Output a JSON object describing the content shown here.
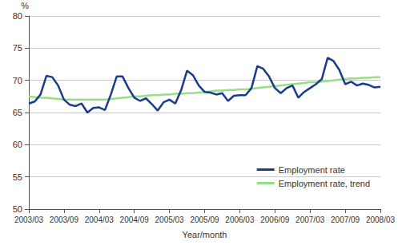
{
  "chart_data": {
    "type": "line",
    "x_label": "Year/month",
    "y_label": "%",
    "categories": [
      "2003/03",
      null,
      null,
      null,
      null,
      null,
      "2003/09",
      null,
      null,
      null,
      null,
      null,
      "2004/03",
      null,
      null,
      null,
      null,
      null,
      "2004/09",
      null,
      null,
      null,
      null,
      null,
      "2005/03",
      null,
      null,
      null,
      null,
      null,
      "2005/09",
      null,
      null,
      null,
      null,
      null,
      "2006/03",
      null,
      null,
      null,
      null,
      null,
      "2006/09",
      null,
      null,
      null,
      null,
      null,
      "2007/03",
      null,
      null,
      null,
      null,
      null,
      "2007/09",
      null,
      null,
      null,
      null,
      null,
      "2008/03"
    ],
    "series": [
      {
        "name": "Employment rate",
        "color": "#1a3c8c",
        "values": [
          66.4,
          66.7,
          67.8,
          70.7,
          70.5,
          69.2,
          67.0,
          66.2,
          66.0,
          66.4,
          65.0,
          65.7,
          65.8,
          65.4,
          67.8,
          70.6,
          70.6,
          68.8,
          67.3,
          66.8,
          67.2,
          66.3,
          65.3,
          66.6,
          67.0,
          66.4,
          68.5,
          71.5,
          70.8,
          69.2,
          68.2,
          68.1,
          67.8,
          68.0,
          66.8,
          67.6,
          67.7,
          67.7,
          68.8,
          72.2,
          71.8,
          70.6,
          68.8,
          68.0,
          68.8,
          69.2,
          67.3,
          68.2,
          68.8,
          69.4,
          70.2,
          73.5,
          73.0,
          71.6,
          69.4,
          69.8,
          69.2,
          69.5,
          69.3,
          68.9,
          69.0
        ]
      },
      {
        "name": "Employment rate, trend",
        "color": "#99dd88",
        "values": [
          67.5,
          67.4,
          67.3,
          67.3,
          67.2,
          67.1,
          67.0,
          67.0,
          67.0,
          67.0,
          67.0,
          67.0,
          67.0,
          67.0,
          67.1,
          67.2,
          67.3,
          67.4,
          67.5,
          67.5,
          67.6,
          67.7,
          67.7,
          67.8,
          67.8,
          67.9,
          67.9,
          68.0,
          68.0,
          68.1,
          68.2,
          68.3,
          68.4,
          68.4,
          68.5,
          68.5,
          68.6,
          68.6,
          68.7,
          68.8,
          68.9,
          69.0,
          69.1,
          69.2,
          69.3,
          69.4,
          69.5,
          69.6,
          69.7,
          69.7,
          69.8,
          69.9,
          70.0,
          70.1,
          70.2,
          70.3,
          70.3,
          70.4,
          70.4,
          70.5,
          70.5
        ]
      }
    ],
    "ylim": [
      50,
      80
    ],
    "yticks": [
      50,
      55,
      60,
      65,
      70,
      75,
      80
    ],
    "grid": true,
    "legend": "lower right"
  }
}
